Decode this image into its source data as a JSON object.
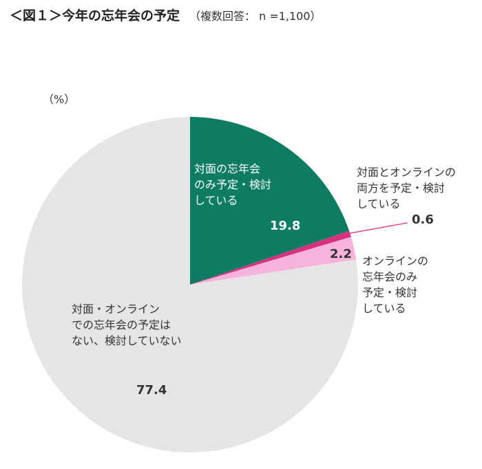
{
  "header": {
    "title": "＜図１＞今年の忘年会の予定",
    "note": "（複数回答： n =1,100）"
  },
  "unit_label": "（%）",
  "chart_data": {
    "type": "pie",
    "start_angle_deg": 0,
    "direction": "clockwise",
    "slices": [
      {
        "label_lines": [
          "対面の忘年会",
          "のみ予定・検討",
          "している"
        ],
        "value": 19.8,
        "value_label": "19.8",
        "color": "#0e7c62"
      },
      {
        "label_lines": [
          "対面とオンラインの",
          "両方を予定・検討",
          "している"
        ],
        "value": 0.6,
        "value_label": "0.6",
        "color": "#d6307f"
      },
      {
        "label_lines": [
          "オンラインの",
          "忘年会のみ",
          "予定・検討",
          "している"
        ],
        "value": 2.2,
        "value_label": "2.2",
        "color": "#f7b3dc"
      },
      {
        "label_lines": [
          "対面・オンライン",
          "での忘年会の予定は",
          "ない、検討していない"
        ],
        "value": 77.4,
        "value_label": "77.4",
        "color": "#e5e5e5"
      }
    ]
  }
}
